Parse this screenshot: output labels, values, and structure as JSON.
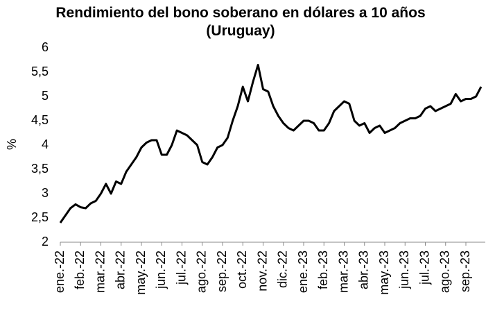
{
  "chart_data": {
    "type": "line",
    "title": "Rendimiento del bono soberano en dólares a 10 años (Uruguay)",
    "y_label": "%",
    "categories": [
      "ene.-22",
      null,
      null,
      null,
      "feb.-22",
      null,
      null,
      null,
      "mar.-22",
      null,
      null,
      null,
      "abr.-22",
      null,
      null,
      null,
      "may.-22",
      null,
      null,
      null,
      "jun.-22",
      null,
      null,
      null,
      "jul.-22",
      null,
      null,
      null,
      "ago.-22",
      null,
      null,
      null,
      "sep.-22",
      null,
      null,
      null,
      "oct.-22",
      null,
      null,
      null,
      "nov.-22",
      null,
      null,
      null,
      "dic.-22",
      null,
      null,
      null,
      "ene.-23",
      null,
      null,
      null,
      "feb.-23",
      null,
      null,
      null,
      "mar.-23",
      null,
      null,
      null,
      "abr.-23",
      null,
      null,
      null,
      "may.-23",
      null,
      null,
      null,
      "jun.-23",
      null,
      null,
      null,
      "jul.-23",
      null,
      null,
      null,
      "ago.-23",
      null,
      null,
      null,
      "sep.-23",
      null,
      null,
      null
    ],
    "series": [
      {
        "name": "Rendimiento",
        "color": "#000000",
        "values": [
          2.4,
          2.55,
          2.7,
          2.78,
          2.72,
          2.7,
          2.8,
          2.85,
          3.0,
          3.2,
          3.0,
          3.25,
          3.2,
          3.45,
          3.6,
          3.75,
          3.95,
          4.05,
          4.1,
          4.1,
          3.8,
          3.8,
          4.0,
          4.3,
          4.25,
          4.2,
          4.1,
          4.0,
          3.65,
          3.6,
          3.75,
          3.95,
          4.0,
          4.15,
          4.5,
          4.8,
          5.2,
          4.9,
          5.3,
          5.65,
          5.15,
          5.1,
          4.8,
          4.6,
          4.45,
          4.35,
          4.3,
          4.4,
          4.5,
          4.5,
          4.45,
          4.3,
          4.3,
          4.45,
          4.7,
          4.8,
          4.9,
          4.85,
          4.5,
          4.4,
          4.45,
          4.25,
          4.35,
          4.4,
          4.25,
          4.3,
          4.35,
          4.45,
          4.5,
          4.55,
          4.55,
          4.6,
          4.75,
          4.8,
          4.7,
          4.75,
          4.8,
          4.85,
          5.05,
          4.9,
          4.95,
          4.95,
          5.0,
          5.2
        ]
      }
    ],
    "ylim": [
      2,
      6
    ],
    "yticks": [
      2,
      {
        "value": 2.5,
        "label": "2,5"
      },
      3,
      {
        "value": 3.5,
        "label": "3,5"
      },
      4,
      {
        "value": 4.5,
        "label": "4,5"
      },
      5,
      {
        "value": 5.5,
        "label": "5,5"
      },
      6
    ],
    "grid": false
  }
}
